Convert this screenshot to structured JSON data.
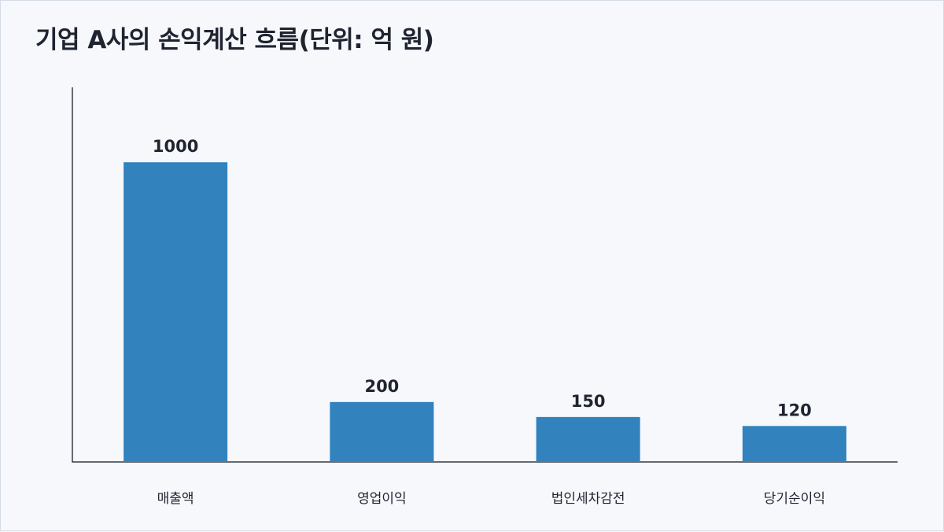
{
  "chart_data": {
    "type": "bar",
    "title": "기업 A사의 손익계산 흐름(단위: 억 원)",
    "categories": [
      "매출액",
      "영업이익",
      "법인세차감전",
      "당기순이익"
    ],
    "values": [
      1000,
      200,
      150,
      120
    ],
    "xlabel": "",
    "ylabel": "",
    "ylim": [
      0,
      1250
    ],
    "grid": false,
    "legend": "none",
    "bar_color": "#3182bd",
    "axis_color": "#333a45"
  }
}
